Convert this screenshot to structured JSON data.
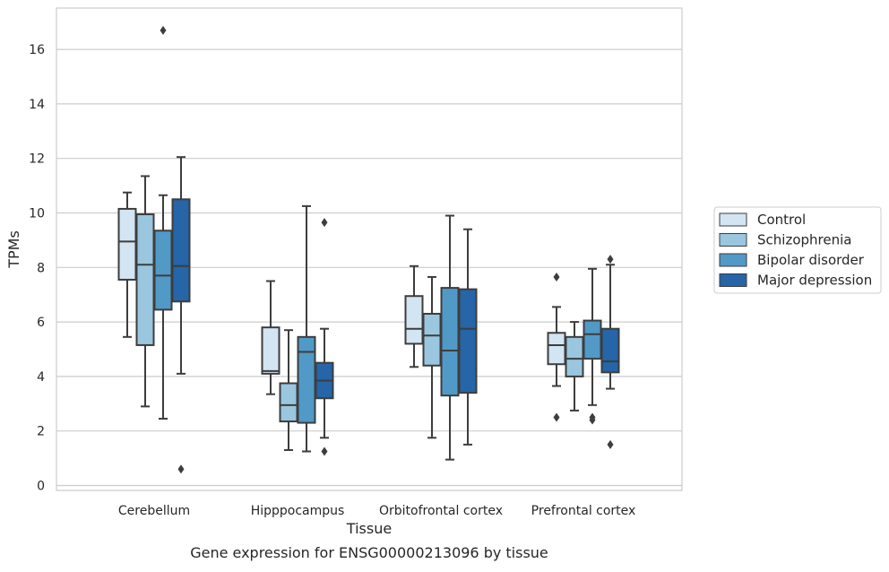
{
  "chart_data": {
    "type": "box",
    "title": "",
    "caption": "Gene expression for ENSG00000213096 by tissue",
    "xlabel": "Tissue",
    "ylabel": "TPMs",
    "ylim": [
      -0.2,
      17.5
    ],
    "yticks": [
      0,
      2,
      4,
      6,
      8,
      10,
      12,
      14,
      16
    ],
    "ytick_labels": [
      "0",
      "2",
      "4",
      "6",
      "8",
      "10",
      "12",
      "14",
      "16"
    ],
    "grid": "horizontal",
    "legend_position": "right",
    "categories": [
      "Cerebellum",
      "Hipppocampus",
      "Orbitofrontal cortex",
      "Prefrontal cortex"
    ],
    "series": [
      {
        "name": "Control",
        "color": "#d3e4f3",
        "boxes": [
          {
            "whisker_low": 5.45,
            "q1": 7.55,
            "median": 8.95,
            "q3": 10.15,
            "whisker_high": 10.75,
            "outliers": []
          },
          {
            "whisker_low": 3.35,
            "q1": 4.1,
            "median": 4.2,
            "q3": 5.8,
            "whisker_high": 7.5,
            "outliers": []
          },
          {
            "whisker_low": 4.35,
            "q1": 5.2,
            "median": 5.75,
            "q3": 6.95,
            "whisker_high": 8.05,
            "outliers": []
          },
          {
            "whisker_low": 3.65,
            "q1": 4.45,
            "median": 5.15,
            "q3": 5.6,
            "whisker_high": 6.55,
            "outliers": [
              7.65,
              2.5
            ]
          }
        ]
      },
      {
        "name": "Schizophrenia",
        "color": "#9ac6df",
        "boxes": [
          {
            "whisker_low": 2.9,
            "q1": 5.15,
            "median": 8.1,
            "q3": 9.95,
            "whisker_high": 11.35,
            "outliers": []
          },
          {
            "whisker_low": 1.3,
            "q1": 2.35,
            "median": 2.95,
            "q3": 3.75,
            "whisker_high": 5.7,
            "outliers": []
          },
          {
            "whisker_low": 1.75,
            "q1": 4.4,
            "median": 5.5,
            "q3": 6.3,
            "whisker_high": 7.65,
            "outliers": []
          },
          {
            "whisker_low": 2.75,
            "q1": 4.0,
            "median": 4.65,
            "q3": 5.45,
            "whisker_high": 6.0,
            "outliers": []
          }
        ]
      },
      {
        "name": "Bipolar disorder",
        "color": "#5199c6",
        "boxes": [
          {
            "whisker_low": 2.45,
            "q1": 6.45,
            "median": 7.7,
            "q3": 9.35,
            "whisker_high": 10.65,
            "outliers": [
              16.7
            ]
          },
          {
            "whisker_low": 1.25,
            "q1": 2.3,
            "median": 4.9,
            "q3": 5.45,
            "whisker_high": 10.25,
            "outliers": []
          },
          {
            "whisker_low": 0.95,
            "q1": 3.3,
            "median": 4.95,
            "q3": 7.25,
            "whisker_high": 9.9,
            "outliers": []
          },
          {
            "whisker_low": 2.95,
            "q1": 4.65,
            "median": 5.55,
            "q3": 6.05,
            "whisker_high": 7.95,
            "outliers": [
              2.5,
              2.4
            ]
          }
        ]
      },
      {
        "name": "Major depression",
        "color": "#2565a8",
        "boxes": [
          {
            "whisker_low": 4.1,
            "q1": 6.75,
            "median": 8.05,
            "q3": 10.5,
            "whisker_high": 12.05,
            "outliers": [
              0.6
            ]
          },
          {
            "whisker_low": 1.75,
            "q1": 3.2,
            "median": 3.85,
            "q3": 4.5,
            "whisker_high": 5.75,
            "outliers": [
              9.65,
              1.25
            ]
          },
          {
            "whisker_low": 1.5,
            "q1": 3.4,
            "median": 5.75,
            "q3": 7.2,
            "whisker_high": 9.4,
            "outliers": []
          },
          {
            "whisker_low": 3.55,
            "q1": 4.15,
            "median": 4.55,
            "q3": 5.75,
            "whisker_high": 8.1,
            "outliers": [
              8.3,
              1.5
            ]
          }
        ]
      }
    ]
  }
}
